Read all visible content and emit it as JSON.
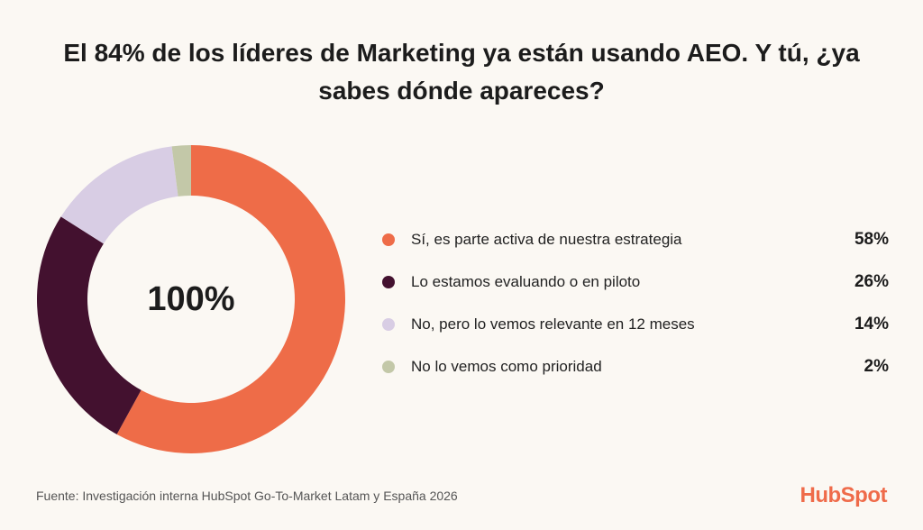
{
  "title": "El 84% de los líderes de Marketing ya están usando AEO. Y tú, ¿ya sabes dónde apareces?",
  "chart_data": {
    "type": "pie",
    "donut": true,
    "center_label": "100%",
    "legend_position": "right",
    "slices": [
      {
        "label": "Sí, es parte activa de nuestra estrategia",
        "value": 58,
        "value_label": "58%",
        "color": "#ee6c48"
      },
      {
        "label": "Lo estamos evaluando o en piloto",
        "value": 26,
        "value_label": "26%",
        "color": "#43112f"
      },
      {
        "label": "No, pero lo vemos relevante en 12 meses",
        "value": 14,
        "value_label": "14%",
        "color": "#d8cde4"
      },
      {
        "label": "No lo vemos como prioridad",
        "value": 2,
        "value_label": "2%",
        "color": "#c3c8a8"
      }
    ]
  },
  "footer": {
    "source": "Fuente: Investigación interna HubSpot Go-To-Market Latam y España 2026",
    "logo": "HubSpot",
    "logo_color": "#ef6b4a"
  }
}
